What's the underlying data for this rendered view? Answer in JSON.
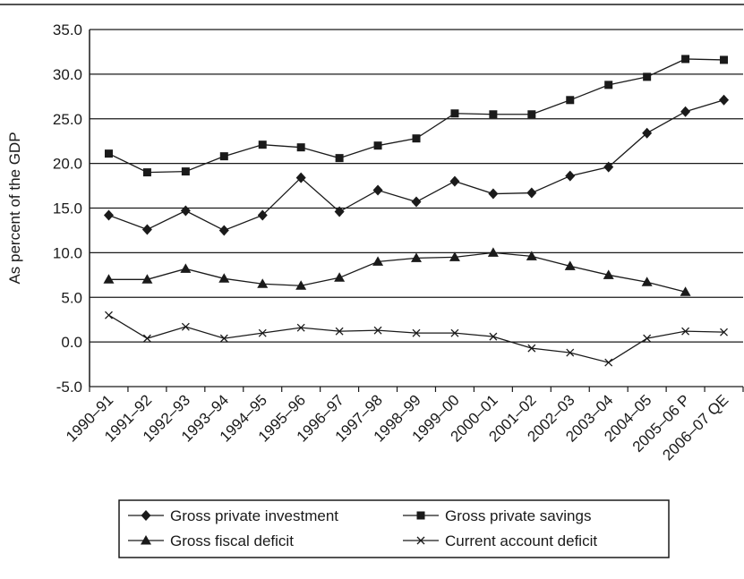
{
  "chart_data": {
    "type": "line",
    "title": "",
    "xlabel": "",
    "ylabel": "As percent of the GDP",
    "ylim": [
      -5.0,
      35.0
    ],
    "yticks": [
      "35.0",
      "30.0",
      "25.0",
      "20.0",
      "15.0",
      "10.0",
      "5.0",
      "0.0",
      "-5.0"
    ],
    "ytick_values": [
      35,
      30,
      25,
      20,
      15,
      10,
      5,
      0,
      -5
    ],
    "grid": "horizontal",
    "legend_position": "bottom",
    "categories": [
      "1990–91",
      "1991–92",
      "1992–93",
      "1993–94",
      "1994–95",
      "1995–96",
      "1996–97",
      "1997–98",
      "1998–99",
      "1999–00",
      "2000–01",
      "2001–02",
      "2002–03",
      "2003–04",
      "2004–05",
      "2005–06 P",
      "2006–07 QE"
    ],
    "series": [
      {
        "name": "Gross private investment",
        "marker": "diamond",
        "color": "#1a1a1a",
        "values": [
          14.2,
          12.6,
          14.7,
          12.5,
          14.2,
          18.4,
          14.6,
          17.0,
          15.7,
          18.0,
          16.6,
          16.7,
          18.6,
          19.6,
          23.4,
          25.8,
          27.1
        ]
      },
      {
        "name": "Gross private savings",
        "marker": "square",
        "color": "#1a1a1a",
        "values": [
          21.1,
          19.0,
          19.1,
          20.8,
          22.1,
          21.8,
          20.6,
          22.0,
          22.8,
          25.6,
          25.5,
          25.5,
          27.1,
          28.8,
          29.7,
          31.7,
          31.6
        ]
      },
      {
        "name": "Gross fiscal deficit",
        "marker": "triangle",
        "color": "#1a1a1a",
        "values": [
          7.0,
          7.0,
          8.2,
          7.1,
          6.5,
          6.3,
          7.2,
          9.0,
          9.4,
          9.5,
          10.0,
          9.6,
          8.5,
          7.5,
          6.7,
          5.6,
          null
        ]
      },
      {
        "name": "Current account deficit",
        "marker": "x",
        "color": "#1a1a1a",
        "values": [
          3.0,
          0.4,
          1.7,
          0.4,
          1.0,
          1.6,
          1.2,
          1.3,
          1.0,
          1.0,
          0.6,
          -0.7,
          -1.2,
          -2.3,
          0.4,
          1.2,
          1.1
        ]
      }
    ]
  }
}
